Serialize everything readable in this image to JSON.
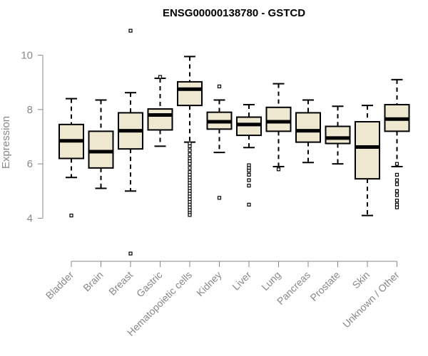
{
  "chart_data": {
    "type": "box",
    "title": "ENSG00000138780 - GSTCD",
    "ylabel": "Expression",
    "xlabel": "",
    "ylim": [
      2.5,
      11
    ],
    "yticks": [
      4,
      6,
      8,
      10
    ],
    "grid": false,
    "box_fill": "#efe8d0",
    "categories": [
      "Bladder",
      "Brain",
      "Breast",
      "Gastric",
      "Hematopoietic cells",
      "Kidney",
      "Liver",
      "Lung",
      "Pancreas",
      "Prostate",
      "Skin",
      "Unknown / Other"
    ],
    "boxes": [
      {
        "whisker_low": 5.5,
        "q1": 6.2,
        "median": 6.85,
        "q3": 7.45,
        "whisker_high": 8.4,
        "outliers": [
          4.1
        ]
      },
      {
        "whisker_low": 5.1,
        "q1": 5.85,
        "median": 6.45,
        "q3": 7.2,
        "whisker_high": 8.35,
        "outliers": []
      },
      {
        "whisker_low": 5.0,
        "q1": 6.55,
        "median": 7.22,
        "q3": 7.88,
        "whisker_high": 8.62,
        "outliers": [
          10.9,
          2.7
        ]
      },
      {
        "whisker_low": 6.65,
        "q1": 7.25,
        "median": 7.8,
        "q3": 8.02,
        "whisker_high": 9.15,
        "outliers": [
          9.2
        ]
      },
      {
        "whisker_low": 6.8,
        "q1": 8.15,
        "median": 8.75,
        "q3": 9.02,
        "whisker_high": 9.95,
        "outliers": [
          6.75,
          6.65,
          6.5,
          6.35,
          6.2,
          6.1,
          6.0,
          5.85,
          5.7,
          5.6,
          5.5,
          5.4,
          5.3,
          5.2,
          5.1,
          5.0,
          4.9,
          4.8,
          4.7,
          4.6,
          4.5,
          4.4,
          4.3,
          4.2,
          4.12
        ]
      },
      {
        "whisker_low": 6.42,
        "q1": 7.28,
        "median": 7.55,
        "q3": 7.9,
        "whisker_high": 8.35,
        "outliers": [
          8.85,
          4.75
        ]
      },
      {
        "whisker_low": 6.6,
        "q1": 7.05,
        "median": 7.45,
        "q3": 7.72,
        "whisker_high": 8.18,
        "outliers": [
          5.95,
          5.85,
          5.75,
          5.6,
          5.4,
          5.2,
          4.5
        ]
      },
      {
        "whisker_low": 5.9,
        "q1": 7.2,
        "median": 7.55,
        "q3": 8.08,
        "whisker_high": 8.95,
        "outliers": [
          5.8
        ]
      },
      {
        "whisker_low": 6.05,
        "q1": 6.8,
        "median": 7.22,
        "q3": 7.88,
        "whisker_high": 8.35,
        "outliers": []
      },
      {
        "whisker_low": 6.0,
        "q1": 6.75,
        "median": 6.95,
        "q3": 7.38,
        "whisker_high": 8.12,
        "outliers": []
      },
      {
        "whisker_low": 4.1,
        "q1": 5.45,
        "median": 6.62,
        "q3": 7.55,
        "whisker_high": 8.15,
        "outliers": []
      },
      {
        "whisker_low": 5.9,
        "q1": 7.2,
        "median": 7.65,
        "q3": 8.18,
        "whisker_high": 9.1,
        "outliers": [
          6.0,
          5.6,
          5.4,
          5.25,
          5.0,
          4.85,
          4.65,
          4.5,
          4.4
        ]
      }
    ]
  }
}
